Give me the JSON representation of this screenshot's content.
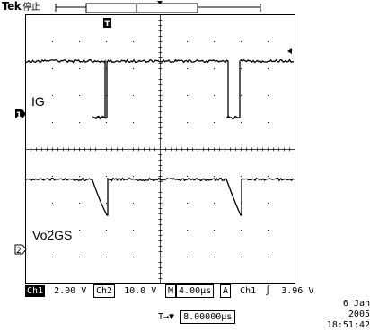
{
  "header": {
    "brand": "Tek",
    "status": "停止"
  },
  "channels": [
    {
      "id": "ch1",
      "marker": "1",
      "label": "IG"
    },
    {
      "id": "ch2",
      "marker": "2",
      "label": "Vo2GS"
    }
  ],
  "trigger_marker": "T",
  "readout": {
    "ch1_name": "Ch1",
    "ch1_scale": "2.00 V",
    "ch2_name": "Ch2",
    "ch2_scale": "10.0 V",
    "time_prefix": "M",
    "time_scale": "4.00µs",
    "trig_prefix": "A",
    "trig_source": "Ch1",
    "trig_slope": "∫",
    "trig_level": "3.96 V"
  },
  "date": "6 Jan  2005",
  "time": "18:51:42",
  "trigger_position": {
    "symbol": "T→▼",
    "value": "8.00000µs"
  }
}
